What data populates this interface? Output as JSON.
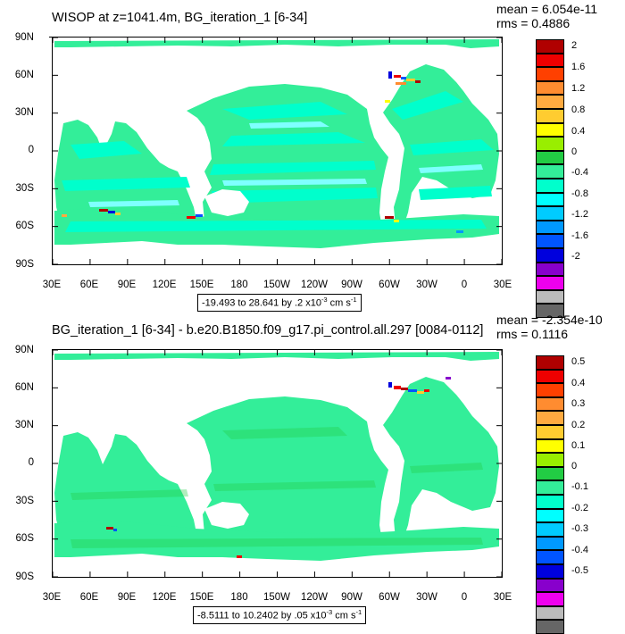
{
  "panels": [
    {
      "title": "WISOP at z=1041.4m, BG_iteration_1 [6-34]",
      "mean": "mean = 6.054e-11",
      "rms": "rms = 0.4886",
      "range_prefix": "-19.493 to 28.641 by .2 x10",
      "range_exp": "-3",
      "range_unit": " cm s",
      "range_unit_exp": "-1",
      "lat_labels": [
        "90N",
        "60N",
        "30N",
        "0",
        "30S",
        "60S",
        "90S"
      ],
      "lon_labels": [
        "30E",
        "60E",
        "90E",
        "120E",
        "150E",
        "180",
        "150W",
        "120W",
        "90W",
        "60W",
        "30W",
        "0",
        "30E"
      ],
      "colorbar_labels": [
        "2",
        "1.6",
        "1.2",
        "0.8",
        "0.4",
        "0",
        "-0.4",
        "-0.8",
        "-1.2",
        "-1.6",
        "-2"
      ]
    },
    {
      "title": "BG_iteration_1 [6-34] - b.e20.B1850.f09_g17.pi_control.all.297 [0084-0112]",
      "mean": "mean = -2.354e-10",
      "rms": "rms = 0.1116",
      "range_prefix": "-8.5111 to 10.2402 by .05 x10",
      "range_exp": "-3",
      "range_unit": " cm s",
      "range_unit_exp": "-1",
      "lat_labels": [
        "90N",
        "60N",
        "30N",
        "0",
        "30S",
        "60S",
        "90S"
      ],
      "lon_labels": [
        "30E",
        "60E",
        "90E",
        "120E",
        "150E",
        "180",
        "150W",
        "120W",
        "90W",
        "60W",
        "30W",
        "0",
        "30E"
      ],
      "colorbar_labels": [
        "0.5",
        "0.4",
        "0.3",
        "0.2",
        "0.1",
        "0",
        "-0.1",
        "-0.2",
        "-0.3",
        "-0.4",
        "-0.5"
      ]
    }
  ],
  "colorbar_colors": [
    "#b00000",
    "#ee0000",
    "#ff4000",
    "#ff8c30",
    "#ffaa40",
    "#ffcc30",
    "#ffff00",
    "#99ee00",
    "#22cc44",
    "#33ee99",
    "#00ffcc",
    "#00ffff",
    "#00ccff",
    "#0099ff",
    "#0055ff",
    "#0000dd",
    "#8800cc",
    "#ee00ee",
    "#bbbbbb",
    "#666666"
  ],
  "ocean_colors": {
    "green": "#33ee99",
    "cyan": "#00ffcc",
    "light": "#7fffff",
    "land": "#ffffff"
  }
}
